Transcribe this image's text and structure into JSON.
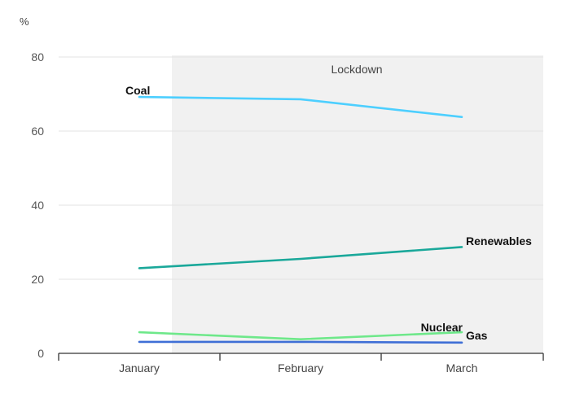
{
  "chart_data": {
    "type": "line",
    "y_unit": "%",
    "categories": [
      "January",
      "February",
      "March"
    ],
    "ylim": [
      0,
      80
    ],
    "yticks": [
      0,
      20,
      40,
      60,
      80
    ],
    "grid": true,
    "legend": "inline-labels",
    "shaded_region": {
      "label": "Lockdown",
      "from": "mid-January",
      "to": "March"
    },
    "series": [
      {
        "name": "Coal",
        "values": [
          69.2,
          68.6,
          63.8
        ],
        "color": "#4dcfff"
      },
      {
        "name": "Renewables",
        "values": [
          23.0,
          25.5,
          28.7
        ],
        "color": "#1aa89a"
      },
      {
        "name": "Nuclear",
        "values": [
          5.7,
          3.8,
          5.7
        ],
        "color": "#6ee88a"
      },
      {
        "name": "Gas",
        "values": [
          3.1,
          3.1,
          2.9
        ],
        "color": "#3f6fd6"
      }
    ]
  }
}
